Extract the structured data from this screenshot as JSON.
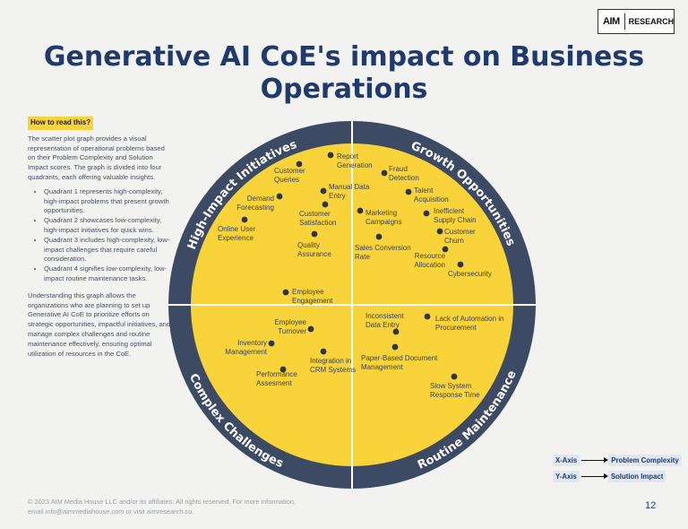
{
  "logo": {
    "mark": "AIM",
    "text": "RESEARCH"
  },
  "title": "Generative AI CoE's impact on Business Operations",
  "sidebar": {
    "heading": "How to read this?",
    "intro": "The scatter plot graph provides a visual representation of operational problems based on their Problem Complexity and Solution Impact scores. The graph is divided into four quadrants, each offering valuable insights.",
    "bullets": [
      "Quadrant 1 represents high-complexity, high-impact problems that present growth opportunities.",
      "Quadrant 2 showcases low-complexity, high-impact initiatives for quick wins.",
      "Quadrant 3 includes high-complexity, low-impact challenges that require careful consideration.",
      "Quadrant 4 signifies low-complexity, low-impact routine maintenance tasks."
    ],
    "outro": "Understanding this graph allows the organizations who are planning to set up Generative AI CoE to prioritize efforts on strategic opportunities, impactful initiatives, and manage complex challenges and routine maintenance effectively, ensuring optimal utilization of resources in the CoE."
  },
  "chart_data": {
    "type": "scatter",
    "xlabel": "Problem Complexity",
    "ylabel": "Solution Impact",
    "grid": false,
    "colors": {
      "ring": "#3d4a63",
      "fill": "#f8d33a",
      "point": "#2f3547"
    },
    "quadrants": [
      "High-Impact Initiatives",
      "Growth Opportunities",
      "Complex Challenges",
      "Routine Maintenance"
    ],
    "points": [
      {
        "label": [
          "Report",
          "Generation"
        ],
        "quadrant": "High-Impact Initiatives"
      },
      {
        "label": [
          "Customer",
          "Queries"
        ],
        "quadrant": "High-Impact Initiatives"
      },
      {
        "label": [
          "Fraud",
          "Detection"
        ],
        "quadrant": "Growth Opportunities"
      },
      {
        "label": [
          "Manual Data",
          "Entry"
        ],
        "quadrant": "High-Impact Initiatives"
      },
      {
        "label": [
          "Talent",
          "Acquisition"
        ],
        "quadrant": "Growth Opportunities"
      },
      {
        "label": [
          "Demand",
          "Forecasting"
        ],
        "quadrant": "High-Impact Initiatives"
      },
      {
        "label": [
          "Customer",
          "Satisfaction"
        ],
        "quadrant": "High-Impact Initiatives"
      },
      {
        "label": [
          "Marketing",
          "Campaigns"
        ],
        "quadrant": "Growth Opportunities"
      },
      {
        "label": [
          "Inefficient",
          "Supply Chain"
        ],
        "quadrant": "Growth Opportunities"
      },
      {
        "label": [
          "Online User",
          "Experience"
        ],
        "quadrant": "High-Impact Initiatives"
      },
      {
        "label": [
          "Customer",
          "Churn"
        ],
        "quadrant": "Growth Opportunities"
      },
      {
        "label": [
          "Quality",
          "Assurance"
        ],
        "quadrant": "High-Impact Initiatives"
      },
      {
        "label": [
          "Sales Conversion",
          "Rate"
        ],
        "quadrant": "Growth Opportunities"
      },
      {
        "label": [
          "Resource",
          "Allocation"
        ],
        "quadrant": "Growth Opportunities"
      },
      {
        "label": [
          "Cybersecurity"
        ],
        "quadrant": "Growth Opportunities"
      },
      {
        "label": [
          "Employee",
          "Engagement"
        ],
        "quadrant": "High-Impact Initiatives"
      },
      {
        "label": [
          "Employee",
          "Turnover"
        ],
        "quadrant": "Complex Challenges"
      },
      {
        "label": [
          "Inventory",
          "Management"
        ],
        "quadrant": "Complex Challenges"
      },
      {
        "label": [
          "Integration in",
          "CRM Systems"
        ],
        "quadrant": "Complex Challenges"
      },
      {
        "label": [
          "Performance",
          "Assesment"
        ],
        "quadrant": "Complex Challenges"
      },
      {
        "label": [
          "Inconsistent",
          "Data Entry"
        ],
        "quadrant": "Routine Maintenance"
      },
      {
        "label": [
          "Lack of Automation in",
          "Procurement"
        ],
        "quadrant": "Routine Maintenance"
      },
      {
        "label": [
          "Paper-Based Document",
          "Management"
        ],
        "quadrant": "Routine Maintenance"
      },
      {
        "label": [
          "Slow System",
          "Response Time"
        ],
        "quadrant": "Routine Maintenance"
      }
    ]
  },
  "legend": {
    "x_tag": "X-Axis",
    "x_value": "Problem Complexity",
    "y_tag": "Y-Axis",
    "y_value": "Solution  Impact"
  },
  "footer": "© 2023 AIM Media House LLC and/or its affiliates. All rights reserved. For more information, email info@aimmediahouse.com or visit aimresearch.co.",
  "page_number": "12"
}
